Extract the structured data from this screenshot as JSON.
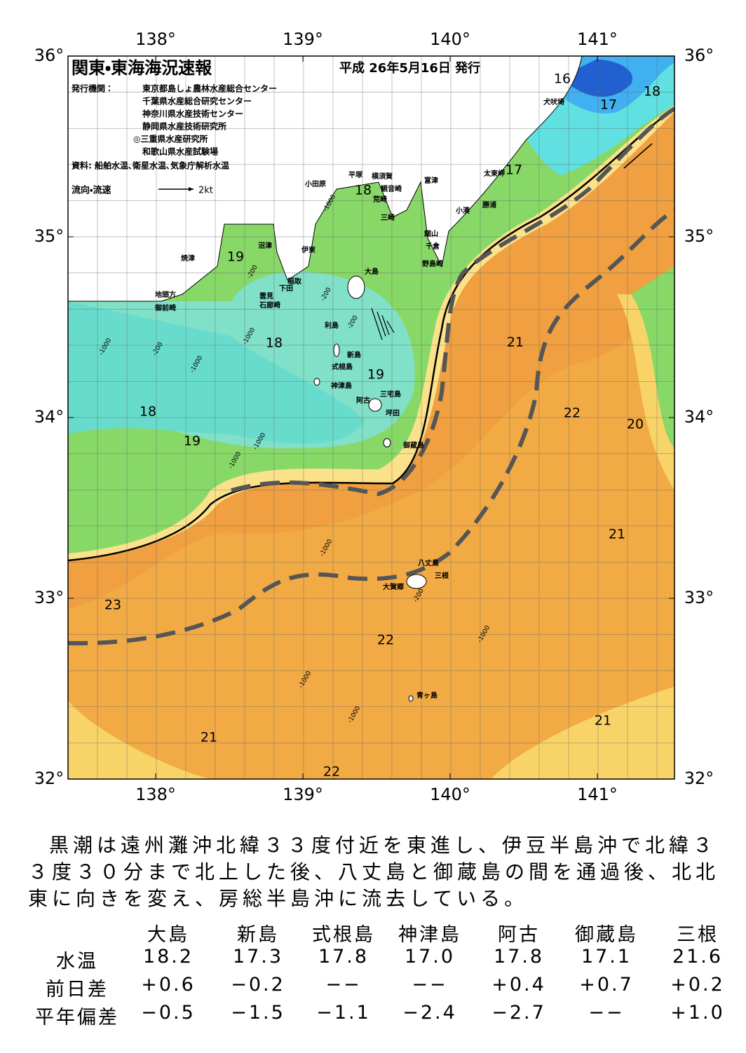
{
  "header": {
    "title": "関東・東海海況速報",
    "date": "平成 26年5月16日 発行",
    "org_label": "発行機関：",
    "orgs": [
      "東京都島しょ農林水産総合センター",
      "千葉県水産総合研究センター",
      "神奈川県水産技術センター",
      "静岡県水産技術研究所",
      "◎三重県水産研究所",
      "和歌山県水産試験場"
    ],
    "source": "資料: 船舶水温､衛星水温､気象庁解析水温",
    "legend_label": "流向・流速",
    "legend_speed": "2kt"
  },
  "map": {
    "lon_ticks": [
      {
        "value": 138,
        "label": "138°"
      },
      {
        "value": 139,
        "label": "139°"
      },
      {
        "value": 140,
        "label": "140°"
      },
      {
        "value": 141,
        "label": "141°"
      }
    ],
    "lat_ticks": [
      {
        "value": 36,
        "label": "36°"
      },
      {
        "value": 35,
        "label": "35°"
      },
      {
        "value": 34,
        "label": "34°"
      },
      {
        "value": 33,
        "label": "33°"
      },
      {
        "value": 32,
        "label": "32°"
      }
    ],
    "places": [
      "小田原",
      "平塚",
      "横須賀",
      "観音崎",
      "荒崎",
      "三崎",
      "富津",
      "館山",
      "千倉",
      "野島崎",
      "小湊",
      "勝浦",
      "太東岬",
      "犬吠埼",
      "沼津",
      "焼津",
      "伊東",
      "稲取",
      "下田",
      "雲見",
      "石廊崎",
      "地頭方",
      "御前崎",
      "大島",
      "利島",
      "新島",
      "式根島",
      "神津島",
      "三宅島",
      "阿古",
      "坪田",
      "御蔵島",
      "八丈島",
      "三根",
      "大賀郷",
      "青ヶ島"
    ],
    "isotherms": [
      16,
      17,
      18,
      17,
      18,
      19,
      18,
      19,
      18,
      19,
      21,
      22,
      20,
      21,
      23,
      22,
      21,
      21,
      22
    ],
    "depths": [
      "-1000",
      "-200",
      "-1000",
      "-200",
      "-1000",
      "-200",
      "-1000",
      "-200",
      "-1000",
      "-1000",
      "-1000",
      "-200",
      "-1000",
      "-1000",
      "-1000"
    ]
  },
  "text": "黒潮は遠州灘沖北緯３３度付近を東進し、伊豆半島沖で北緯３３度３０分まで北上した後、八丈島と御蔵島の間を通過後、北北東に向きを変え、房総半島沖に流去している。",
  "table": {
    "columns": [
      "大島",
      "新島",
      "式根島",
      "神津島",
      "阿古",
      "御蔵島",
      "三根"
    ],
    "rows": [
      {
        "label": "水温",
        "values": [
          "18.2",
          "17.3",
          "17.8",
          "17.0",
          "17.8",
          "17.1",
          "21.6"
        ]
      },
      {
        "label": "前日差",
        "values": [
          "+0.6",
          "−0.2",
          "−−",
          "−−",
          "+0.4",
          "+0.7",
          "+0.2"
        ]
      },
      {
        "label": "平年偏差",
        "values": [
          "−0.5",
          "−1.5",
          "−1.1",
          "−2.4",
          "−2.7",
          "−−",
          "+1.0"
        ]
      }
    ]
  }
}
